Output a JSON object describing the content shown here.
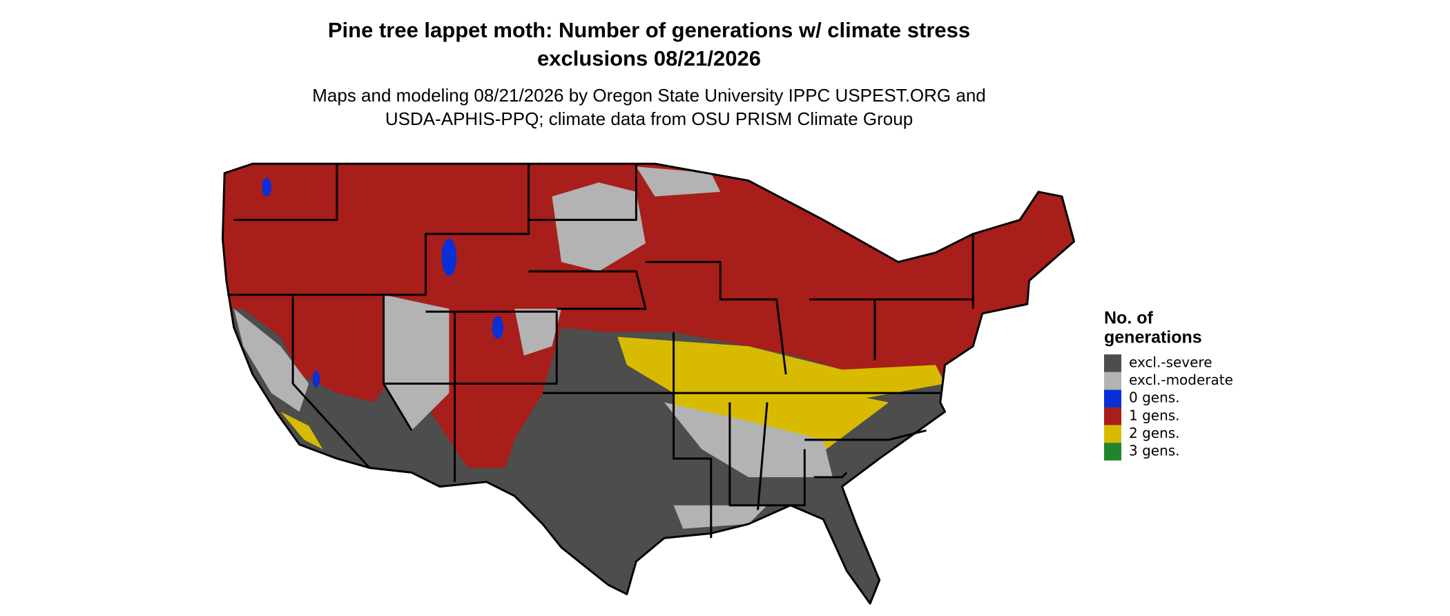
{
  "title": [
    "Pine tree lappet moth: Number of generations w/ climate stress",
    "exclusions 08/21/2026"
  ],
  "subtitle": [
    "Maps and modeling 08/21/2026 by Oregon State University IPPC USPEST.ORG and",
    "USDA-APHIS-PPQ; climate data from OSU PRISM Climate Group"
  ],
  "legend": {
    "title": [
      "No. of",
      "generations"
    ],
    "items": [
      {
        "label": "excl.-severe",
        "color": "#4d4d4d"
      },
      {
        "label": "excl.-moderate",
        "color": "#b3b3b3"
      },
      {
        "label": "0 gens.",
        "color": "#0a2fd6"
      },
      {
        "label": "1 gens.",
        "color": "#a81e1a"
      },
      {
        "label": "2 gens.",
        "color": "#d8bb00"
      },
      {
        "label": "3 gens.",
        "color": "#23852b"
      }
    ]
  }
}
